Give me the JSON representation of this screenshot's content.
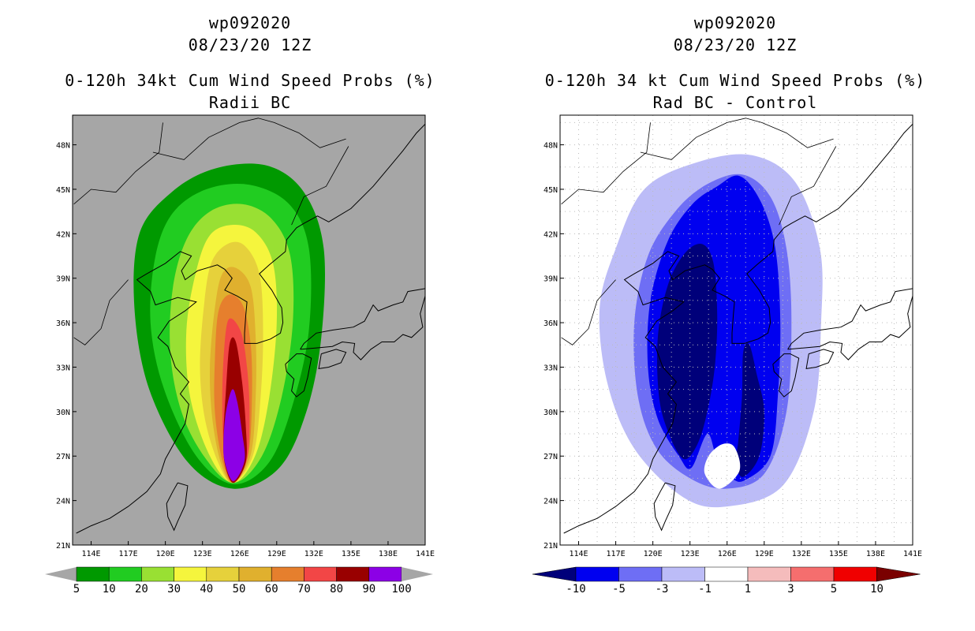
{
  "panels": [
    {
      "storm_id": "wp092020",
      "datetime": "08/23/20 12Z",
      "product": "0-120h 34kt Cum Wind Speed Probs (%)",
      "subtitle": "Radii BC",
      "background_color": "#a6a6a6",
      "colorbar": {
        "labels": [
          "5",
          "10",
          "20",
          "30",
          "40",
          "50",
          "60",
          "70",
          "80",
          "90",
          "100"
        ],
        "colors": [
          "#009900",
          "#21cc21",
          "#99e033",
          "#f5f53d",
          "#e6d13b",
          "#e0b02e",
          "#e67f2d",
          "#f24646",
          "#990000",
          "#8c00e6"
        ]
      }
    },
    {
      "storm_id": "wp092020",
      "datetime": "08/23/20 12Z",
      "product": "0-120h 34 kt Cum Wind Speed Probs (%)",
      "subtitle": "Rad BC - Control",
      "background_color": "#ffffff",
      "colorbar": {
        "labels": [
          "-10",
          "-5",
          "-3",
          "-1",
          "1",
          "3",
          "5",
          "10"
        ],
        "colors": [
          "#00007a",
          "#0000f0",
          "#6e6ef5",
          "#bcbcf7",
          "#ffffff",
          "#f5bcbc",
          "#f56e6e",
          "#f00000",
          "#7a0000"
        ]
      }
    }
  ],
  "axes": {
    "lat_labels": [
      "48N",
      "45N",
      "42N",
      "39N",
      "36N",
      "33N",
      "30N",
      "27N",
      "24N",
      "21N"
    ],
    "lon_labels": [
      "114E",
      "117E",
      "120E",
      "123E",
      "126E",
      "129E",
      "132E",
      "135E",
      "138E",
      "141E"
    ]
  }
}
